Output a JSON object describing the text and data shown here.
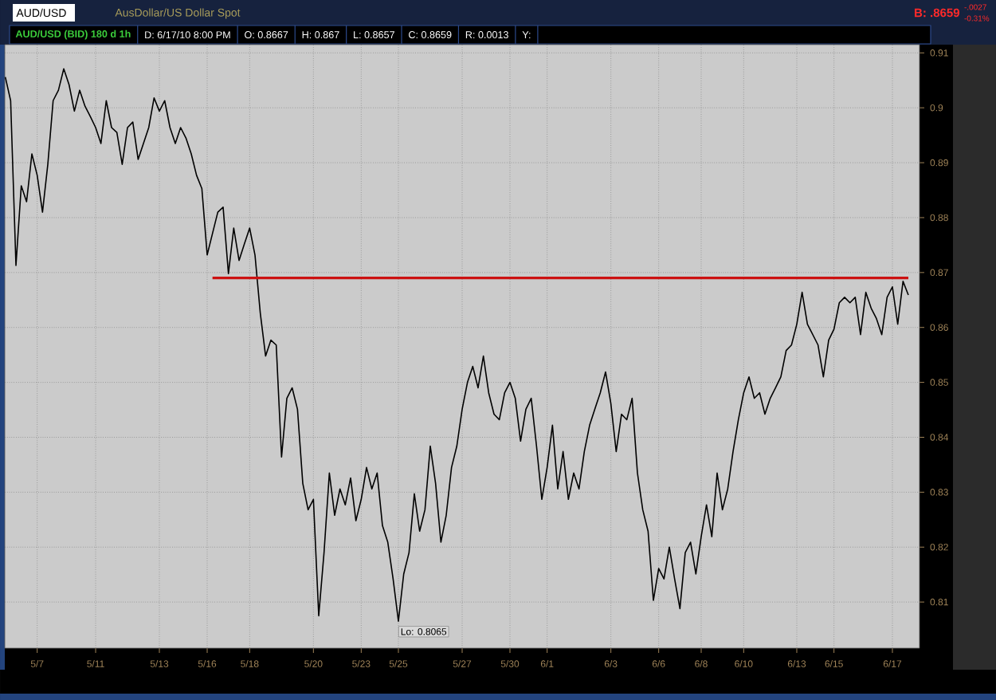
{
  "chart_data": {
    "type": "line",
    "title": "AUD/USD",
    "subtitle": "AusDollar/US Dollar Spot",
    "annotations": [
      "AUD/USD (BID) 180 d 1h",
      "D: 6/17/10 8:00 PM",
      "O: 0.8667",
      "H: 0.867",
      "L: 0.8657",
      "C: 0.8659",
      "R: 0.0013",
      "Y:",
      "B: .8659",
      "-.0027",
      "-0.31%",
      {
        "text": "Lo: 0.8065",
        "x": "5/25",
        "y": 0.8065
      }
    ],
    "categories": [
      null,
      null,
      null,
      null,
      null,
      null,
      "5/7",
      null,
      null,
      null,
      null,
      null,
      null,
      null,
      null,
      null,
      null,
      "5/11",
      null,
      null,
      null,
      null,
      null,
      null,
      null,
      null,
      null,
      null,
      null,
      "5/13",
      null,
      null,
      null,
      null,
      null,
      null,
      null,
      null,
      "5/16",
      null,
      null,
      null,
      null,
      null,
      null,
      null,
      "5/18",
      null,
      null,
      null,
      null,
      null,
      null,
      null,
      null,
      null,
      null,
      null,
      "5/20",
      null,
      null,
      null,
      null,
      null,
      null,
      null,
      null,
      "5/23",
      null,
      null,
      null,
      null,
      null,
      null,
      "5/25",
      null,
      null,
      null,
      null,
      null,
      null,
      null,
      null,
      null,
      null,
      null,
      "5/27",
      null,
      null,
      null,
      null,
      null,
      null,
      null,
      null,
      "5/30",
      null,
      null,
      null,
      null,
      null,
      null,
      "6/1",
      null,
      null,
      null,
      null,
      null,
      null,
      null,
      null,
      null,
      null,
      null,
      "6/3",
      null,
      null,
      null,
      null,
      null,
      null,
      null,
      null,
      "6/6",
      null,
      null,
      null,
      null,
      null,
      null,
      null,
      "6/8",
      null,
      null,
      null,
      null,
      null,
      null,
      null,
      "6/10",
      null,
      null,
      null,
      null,
      null,
      null,
      null,
      null,
      null,
      "6/13",
      null,
      null,
      null,
      null,
      null,
      null,
      "6/15",
      null,
      null,
      null,
      null,
      null,
      null,
      null,
      null,
      null,
      null,
      "6/17",
      null,
      null,
      null
    ],
    "series": [
      {
        "color": "#000000",
        "values": [
          0.9056,
          0.9013,
          0.8713,
          0.8858,
          0.8829,
          0.8916,
          0.8877,
          0.881,
          0.8897,
          0.9013,
          0.9032,
          0.9071,
          0.9042,
          0.8994,
          0.9032,
          0.9003,
          0.8984,
          0.8964,
          0.8935,
          0.9013,
          0.8964,
          0.8955,
          0.8897,
          0.8964,
          0.8974,
          0.8906,
          0.8935,
          0.8964,
          0.9018,
          0.8994,
          0.9013,
          0.8964,
          0.8935,
          0.8964,
          0.8945,
          0.8916,
          0.8877,
          0.8853,
          0.8732,
          0.8771,
          0.881,
          0.8819,
          0.8698,
          0.8781,
          0.8722,
          0.8752,
          0.8781,
          0.8732,
          0.8626,
          0.8548,
          0.8577,
          0.8568,
          0.8364,
          0.8471,
          0.849,
          0.8451,
          0.8316,
          0.8268,
          0.8287,
          0.8075,
          0.819,
          0.8335,
          0.8258,
          0.8306,
          0.8277,
          0.8326,
          0.8248,
          0.8287,
          0.8345,
          0.8306,
          0.8335,
          0.8239,
          0.8209,
          0.8142,
          0.8065,
          0.8151,
          0.819,
          0.8297,
          0.8229,
          0.8268,
          0.8384,
          0.8316,
          0.8209,
          0.8258,
          0.8345,
          0.8384,
          0.8451,
          0.85,
          0.8529,
          0.849,
          0.8548,
          0.8481,
          0.8442,
          0.8432,
          0.8481,
          0.85,
          0.8471,
          0.8393,
          0.8451,
          0.8471,
          0.8384,
          0.8287,
          0.8345,
          0.8422,
          0.8306,
          0.8374,
          0.8287,
          0.8335,
          0.8306,
          0.8374,
          0.8422,
          0.8452,
          0.8481,
          0.8519,
          0.8461,
          0.8374,
          0.8442,
          0.8432,
          0.8471,
          0.8335,
          0.8268,
          0.8229,
          0.8103,
          0.8161,
          0.8142,
          0.82,
          0.8142,
          0.8088,
          0.819,
          0.8209,
          0.8151,
          0.8219,
          0.8277,
          0.8219,
          0.8335,
          0.8268,
          0.8306,
          0.8374,
          0.8432,
          0.8481,
          0.851,
          0.8471,
          0.8481,
          0.8442,
          0.8471,
          0.849,
          0.851,
          0.8558,
          0.8568,
          0.8606,
          0.8664,
          0.8606,
          0.8587,
          0.8568,
          0.851,
          0.8577,
          0.8597,
          0.8645,
          0.8655,
          0.8645,
          0.8655,
          0.8587,
          0.8664,
          0.8635,
          0.8616,
          0.8587,
          0.8655,
          0.8674,
          0.8606,
          0.8684,
          0.8659
        ]
      },
      {
        "type": "line",
        "color": "#cc1111",
        "values": [
          null,
          null,
          null,
          null,
          null,
          null,
          null,
          null,
          null,
          null,
          null,
          null,
          null,
          null,
          null,
          null,
          null,
          null,
          null,
          null,
          null,
          null,
          null,
          null,
          null,
          null,
          null,
          null,
          null,
          null,
          null,
          null,
          null,
          null,
          null,
          null,
          null,
          null,
          null,
          0.869,
          0.869,
          0.869,
          0.869,
          0.869,
          0.869,
          0.869,
          0.869,
          0.869,
          0.869,
          0.869,
          0.869,
          0.869,
          0.869,
          0.869,
          0.869,
          0.869,
          0.869,
          0.869,
          0.869,
          0.869,
          0.869,
          0.869,
          0.869,
          0.869,
          0.869,
          0.869,
          0.869,
          0.869,
          0.869,
          0.869,
          0.869,
          0.869,
          0.869,
          0.869,
          0.869,
          0.869,
          0.869,
          0.869,
          0.869,
          0.869,
          0.869,
          0.869,
          0.869,
          0.869,
          0.869,
          0.869,
          0.869,
          0.869,
          0.869,
          0.869,
          0.869,
          0.869,
          0.869,
          0.869,
          0.869,
          0.869,
          0.869,
          0.869,
          0.869,
          0.869,
          0.869,
          0.869,
          0.869,
          0.869,
          0.869,
          0.869,
          0.869,
          0.869,
          0.869,
          0.869,
          0.869,
          0.869,
          0.869,
          0.869,
          0.869,
          0.869,
          0.869,
          0.869,
          0.869,
          0.869,
          0.869,
          0.869,
          0.869,
          0.869,
          0.869,
          0.869,
          0.869,
          0.869,
          0.869,
          0.869,
          0.869,
          0.869,
          0.869,
          0.869,
          0.869,
          0.869,
          0.869,
          0.869,
          0.869,
          0.869,
          0.869,
          0.869,
          0.869,
          0.869,
          0.869,
          0.869,
          0.869,
          0.869,
          0.869,
          0.869,
          0.869,
          0.869,
          0.869,
          0.869,
          0.869,
          0.869,
          0.869,
          0.869,
          0.869,
          0.869,
          0.869,
          0.869,
          0.869,
          0.869,
          0.869,
          0.869,
          0.869,
          0.869,
          0.869,
          0.869,
          0.869
        ]
      }
    ],
    "ylim": [
      0.8016,
      0.9115
    ],
    "yticks": [
      0.81,
      0.82,
      0.83,
      0.84,
      0.85,
      0.86,
      0.87,
      0.88,
      0.89,
      0.9,
      0.91
    ],
    "grid": true
  }
}
